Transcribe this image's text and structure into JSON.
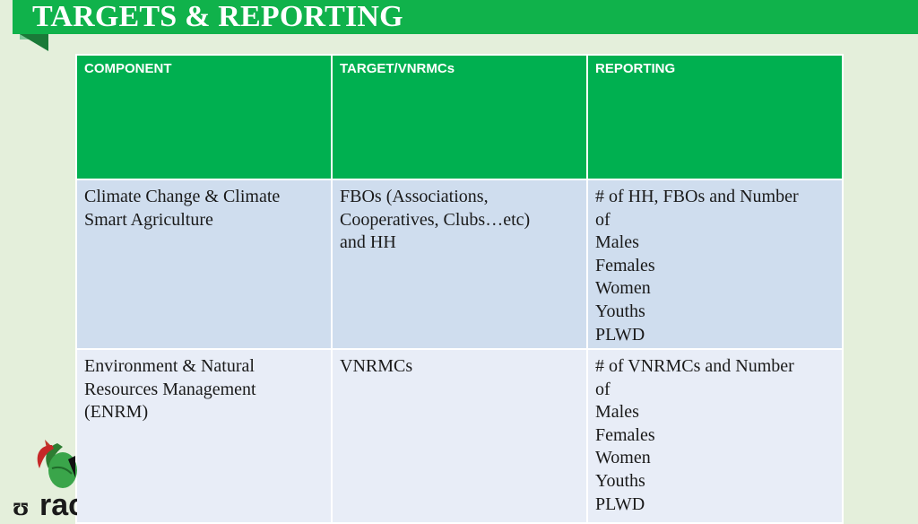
{
  "title": "TARGETS & REPORTING",
  "table": {
    "headers": [
      "COMPONENT",
      "TARGET/VNRMCs",
      "REPORTING"
    ],
    "rows": [
      {
        "component": [
          "Climate Change & Climate",
          "Smart Agriculture"
        ],
        "target": [
          "FBOs (Associations,",
          "Cooperatives, Clubs…etc)",
          "and HH"
        ],
        "reporting": [
          "# of HH, FBOs and Number",
          "of",
          "Males",
          "Females",
          "Women",
          "Youths",
          "PLWD"
        ]
      },
      {
        "component": [
          "Environment & Natural",
          "Resources Management",
          "(ENRM)"
        ],
        "target": [
          "VNRMCs"
        ],
        "reporting": [
          "# of VNRMCs and Number",
          "of",
          "Males",
          "Females",
          "Women",
          "Youths",
          "PLWD"
        ]
      }
    ]
  },
  "logo": {
    "text": "rac",
    "icon": "leaf-logo-icon"
  },
  "colors": {
    "accent": "#00b050",
    "title_bar": "#10b24b",
    "row1": "#cfddee",
    "row2": "#e8edf7",
    "background": "#e4efdb"
  }
}
